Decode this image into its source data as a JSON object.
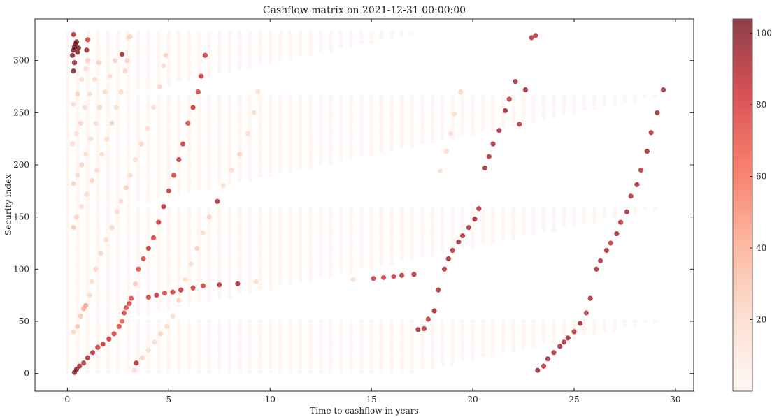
{
  "chart_data": {
    "type": "scatter",
    "title": "Cashflow matrix on 2021-12-31 00:00:00",
    "xlabel": "Time to cashflow in years",
    "ylabel": "Security index",
    "xlim": [
      -1.6,
      30.9
    ],
    "ylim": [
      -17,
      340
    ],
    "xticks": [
      0,
      5,
      10,
      15,
      20,
      25,
      30
    ],
    "yticks": [
      0,
      50,
      100,
      150,
      200,
      250,
      300
    ],
    "colorbar": {
      "min": 0,
      "max": 104,
      "ticks": [
        20,
        40,
        60,
        80,
        100
      ],
      "colormap": "Reds",
      "alpha": 0.7
    },
    "grid": false,
    "series": [
      {
        "values": [
          [
            0.35,
            1,
            102
          ],
          [
            0.45,
            4,
            100
          ],
          [
            0.6,
            7,
            95
          ],
          [
            0.8,
            10,
            90
          ],
          [
            1.0,
            15,
            90
          ],
          [
            1.25,
            20,
            90
          ],
          [
            1.5,
            25,
            85
          ],
          [
            1.75,
            28,
            85
          ],
          [
            2.05,
            33,
            85
          ],
          [
            2.3,
            38,
            80
          ],
          [
            2.55,
            45,
            75
          ],
          [
            2.7,
            50,
            70
          ],
          [
            2.8,
            58,
            80
          ],
          [
            2.9,
            63,
            75
          ],
          [
            3.05,
            67,
            80
          ],
          [
            3.15,
            72,
            75
          ],
          [
            3.35,
            86,
            30
          ],
          [
            3.5,
            100,
            75
          ],
          [
            3.75,
            110,
            80
          ],
          [
            4.0,
            120,
            85
          ],
          [
            4.25,
            130,
            80
          ],
          [
            4.5,
            145,
            85
          ],
          [
            4.75,
            160,
            90
          ],
          [
            5.0,
            175,
            85
          ],
          [
            5.25,
            190,
            80
          ],
          [
            5.5,
            205,
            85
          ],
          [
            5.7,
            220,
            85
          ],
          [
            5.95,
            240,
            80
          ],
          [
            6.2,
            255,
            85
          ],
          [
            6.45,
            270,
            80
          ],
          [
            6.6,
            285,
            85
          ],
          [
            6.8,
            305,
            85
          ],
          [
            0.3,
            40,
            25
          ],
          [
            0.5,
            45,
            30
          ],
          [
            0.65,
            55,
            30
          ],
          [
            0.8,
            62,
            40
          ],
          [
            0.9,
            65,
            45
          ],
          [
            1.1,
            75,
            20
          ],
          [
            1.2,
            88,
            20
          ],
          [
            1.4,
            100,
            25
          ],
          [
            1.65,
            115,
            25
          ],
          [
            1.9,
            128,
            20
          ],
          [
            2.2,
            140,
            25
          ],
          [
            2.45,
            155,
            20
          ],
          [
            2.65,
            165,
            20
          ],
          [
            2.9,
            178,
            25
          ],
          [
            3.1,
            190,
            20
          ],
          [
            3.35,
            205,
            20
          ],
          [
            3.65,
            220,
            25
          ],
          [
            3.95,
            235,
            20
          ],
          [
            4.25,
            255,
            20
          ],
          [
            4.55,
            275,
            25
          ],
          [
            4.75,
            295,
            20
          ],
          [
            4.85,
            305,
            25
          ],
          [
            0.3,
            140,
            30
          ],
          [
            0.45,
            150,
            25
          ],
          [
            0.7,
            160,
            20
          ],
          [
            0.95,
            172,
            20
          ],
          [
            1.2,
            185,
            25
          ],
          [
            1.45,
            195,
            20
          ],
          [
            1.7,
            210,
            20
          ],
          [
            1.95,
            225,
            20
          ],
          [
            2.2,
            240,
            25
          ],
          [
            2.4,
            255,
            20
          ],
          [
            2.65,
            270,
            20
          ],
          [
            2.85,
            290,
            25
          ],
          [
            2.95,
            300,
            25
          ],
          [
            0.3,
            182,
            25
          ],
          [
            0.5,
            190,
            20
          ],
          [
            0.7,
            200,
            25
          ],
          [
            0.9,
            210,
            20
          ],
          [
            1.15,
            225,
            20
          ],
          [
            1.4,
            240,
            20
          ],
          [
            1.6,
            255,
            25
          ],
          [
            1.85,
            270,
            20
          ],
          [
            2.1,
            285,
            20
          ],
          [
            2.35,
            300,
            25
          ],
          [
            0.25,
            220,
            20
          ],
          [
            0.45,
            230,
            20
          ],
          [
            0.65,
            240,
            25
          ],
          [
            0.85,
            255,
            20
          ],
          [
            1.1,
            268,
            20
          ],
          [
            1.35,
            282,
            20
          ],
          [
            1.55,
            298,
            25
          ],
          [
            0.3,
            258,
            20
          ],
          [
            0.5,
            268,
            25
          ],
          [
            0.7,
            282,
            20
          ],
          [
            0.9,
            292,
            20
          ],
          [
            1.0,
            300,
            25
          ],
          [
            0.3,
            290,
            100
          ],
          [
            0.35,
            298,
            100
          ],
          [
            0.25,
            305,
            104
          ],
          [
            0.3,
            310,
            104
          ],
          [
            0.35,
            313,
            104
          ],
          [
            0.4,
            316,
            104
          ],
          [
            0.45,
            318,
            104
          ],
          [
            0.55,
            312,
            104
          ],
          [
            0.5,
            308,
            104
          ],
          [
            0.3,
            325,
            90
          ],
          [
            0.95,
            310,
            95
          ],
          [
            1.0,
            320,
            80
          ],
          [
            3.0,
            322,
            20
          ],
          [
            3.1,
            323,
            25
          ],
          [
            2.7,
            306,
            95
          ],
          [
            3.4,
            10,
            90
          ],
          [
            3.7,
            15,
            25
          ],
          [
            4.0,
            22,
            20
          ],
          [
            4.3,
            30,
            20
          ],
          [
            4.6,
            38,
            25
          ],
          [
            4.9,
            45,
            20
          ],
          [
            5.2,
            55,
            20
          ],
          [
            5.5,
            70,
            25
          ],
          [
            5.8,
            90,
            20
          ],
          [
            6.1,
            105,
            20
          ],
          [
            6.4,
            120,
            25
          ],
          [
            6.7,
            135,
            20
          ],
          [
            7.0,
            150,
            25
          ],
          [
            7.4,
            165,
            90
          ],
          [
            7.7,
            180,
            20
          ],
          [
            8.1,
            195,
            20
          ],
          [
            8.5,
            210,
            25
          ],
          [
            8.9,
            230,
            20
          ],
          [
            9.2,
            250,
            20
          ],
          [
            9.4,
            270,
            20
          ],
          [
            3.3,
            3,
            20
          ],
          [
            4.0,
            73,
            80
          ],
          [
            4.4,
            75,
            85
          ],
          [
            4.8,
            77,
            80
          ],
          [
            5.2,
            78,
            85
          ],
          [
            5.6,
            80,
            85
          ],
          [
            6.2,
            82,
            85
          ],
          [
            6.7,
            84,
            80
          ],
          [
            7.5,
            85,
            90
          ],
          [
            8.4,
            86,
            95
          ],
          [
            9.3,
            88,
            20
          ],
          [
            14.1,
            90,
            20
          ],
          [
            15.1,
            91,
            85
          ],
          [
            15.6,
            92,
            80
          ],
          [
            16.1,
            93,
            85
          ],
          [
            16.5,
            94,
            90
          ],
          [
            17.1,
            95,
            90
          ],
          [
            17.3,
            42,
            95
          ],
          [
            17.6,
            43,
            90
          ],
          [
            17.8,
            52,
            90
          ],
          [
            18.1,
            60,
            95
          ],
          [
            18.3,
            80,
            90
          ],
          [
            18.6,
            100,
            90
          ],
          [
            18.8,
            110,
            95
          ],
          [
            19.0,
            118,
            90
          ],
          [
            19.3,
            126,
            95
          ],
          [
            19.5,
            132,
            90
          ],
          [
            19.8,
            140,
            90
          ],
          [
            20.1,
            148,
            95
          ],
          [
            20.3,
            158,
            90
          ],
          [
            20.6,
            197,
            95
          ],
          [
            20.8,
            208,
            90
          ],
          [
            21.0,
            220,
            95
          ],
          [
            21.3,
            233,
            90
          ],
          [
            21.6,
            252,
            95
          ],
          [
            21.8,
            263,
            90
          ],
          [
            22.1,
            280,
            95
          ],
          [
            22.3,
            239,
            90
          ],
          [
            22.6,
            272,
            95
          ],
          [
            18.4,
            194,
            20
          ],
          [
            18.7,
            213,
            20
          ],
          [
            18.9,
            230,
            20
          ],
          [
            19.1,
            249,
            20
          ],
          [
            19.4,
            270,
            25
          ],
          [
            23.2,
            3,
            95
          ],
          [
            23.5,
            7,
            90
          ],
          [
            23.7,
            14,
            95
          ],
          [
            24.0,
            20,
            90
          ],
          [
            24.3,
            26,
            95
          ],
          [
            24.5,
            30,
            90
          ],
          [
            24.7,
            34,
            95
          ],
          [
            25.0,
            40,
            90
          ],
          [
            25.3,
            48,
            95
          ],
          [
            25.6,
            58,
            90
          ],
          [
            25.8,
            72,
            95
          ],
          [
            26.1,
            100,
            95
          ],
          [
            26.3,
            108,
            90
          ],
          [
            26.6,
            118,
            95
          ],
          [
            26.8,
            125,
            90
          ],
          [
            27.1,
            134,
            95
          ],
          [
            27.3,
            145,
            90
          ],
          [
            27.6,
            155,
            95
          ],
          [
            27.8,
            170,
            90
          ],
          [
            28.1,
            181,
            95
          ],
          [
            28.3,
            195,
            90
          ],
          [
            28.6,
            213,
            95
          ],
          [
            28.8,
            231,
            90
          ],
          [
            29.1,
            250,
            95
          ],
          [
            29.4,
            272,
            95
          ],
          [
            22.9,
            322,
            90
          ],
          [
            23.1,
            324,
            90
          ]
        ]
      }
    ],
    "background_grid": {
      "x_step": 0.5,
      "x_range": [
        0,
        29.5
      ],
      "y_step": 4,
      "y_range": [
        2,
        326
      ],
      "value": 2
    }
  }
}
